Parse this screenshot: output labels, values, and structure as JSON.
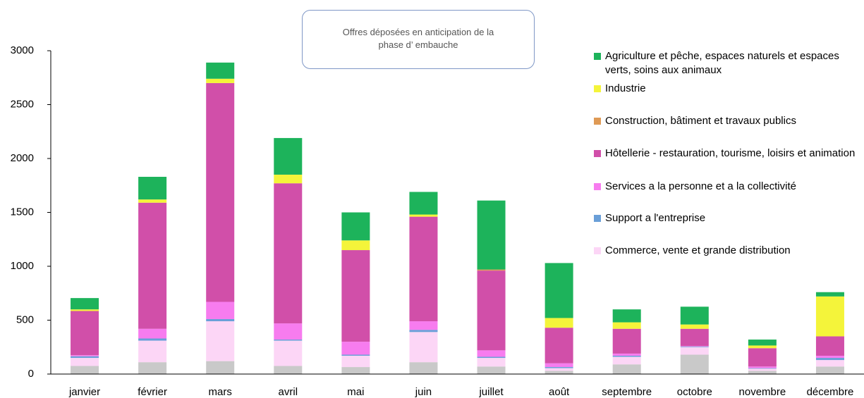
{
  "chart_data": {
    "type": "bar",
    "stacked": true,
    "annotation": "Offres déposées en anticipation de la phase d’ embauche",
    "categories": [
      "janvier",
      "février",
      "mars",
      "avril",
      "mai",
      "juin",
      "juillet",
      "août",
      "septembre",
      "octobre",
      "novembre",
      "décembre"
    ],
    "series": [
      {
        "color": "#c9c9c9",
        "values": [
          75,
          110,
          120,
          75,
          65,
          110,
          70,
          30,
          90,
          180,
          30,
          70
        ]
      },
      {
        "name": "Commerce, vente et grande distribution",
        "color": "#fcd6f6",
        "values": [
          75,
          200,
          370,
          235,
          105,
          280,
          80,
          25,
          70,
          70,
          20,
          60
        ]
      },
      {
        "name": "Support a l'entreprise",
        "color": "#6a9fd8",
        "values": [
          15,
          20,
          20,
          10,
          10,
          20,
          10,
          10,
          10,
          5,
          5,
          20
        ]
      },
      {
        "name": "Services  a la personne et a la collectivité",
        "color": "#f77cef",
        "values": [
          10,
          90,
          160,
          150,
          120,
          80,
          60,
          35,
          20,
          5,
          15,
          20
        ]
      },
      {
        "name": "Hôtellerie - restauration, tourisme, loisirs et animation",
        "color": "#d14fa9",
        "values": [
          410,
          1170,
          2030,
          1300,
          850,
          970,
          740,
          330,
          230,
          160,
          170,
          180
        ]
      },
      {
        "name": "Construction, bâtiment et travaux publics",
        "color": "#df9a55",
        "values": [
          0,
          0,
          0,
          0,
          0,
          0,
          10,
          0,
          0,
          0,
          0,
          0
        ]
      },
      {
        "name": "Industrie",
        "color": "#f4f43a",
        "values": [
          15,
          30,
          40,
          80,
          90,
          20,
          0,
          90,
          60,
          40,
          25,
          370
        ]
      },
      {
        "name": "Agriculture et pêche, espaces naturels et espaces verts, soins aux animaux",
        "color": "#1db35b",
        "values": [
          105,
          210,
          150,
          340,
          260,
          210,
          640,
          510,
          120,
          165,
          55,
          40
        ]
      }
    ],
    "ylim": [
      0,
      3000
    ],
    "yticks": [
      0,
      500,
      1000,
      1500,
      2000,
      2500,
      3000
    ],
    "grid": false
  }
}
